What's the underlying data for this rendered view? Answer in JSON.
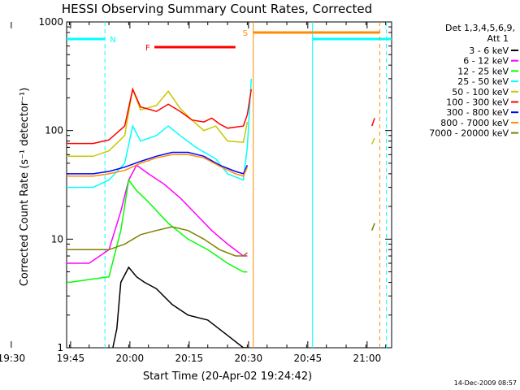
{
  "chart_data": {
    "type": "line",
    "title": "HESSI Observing Summary Count Rates, Corrected",
    "xlabel": "Start Time (20-Apr-02 19:24:42)",
    "ylabel": "Corrected Count Rate (s⁻¹ detector⁻¹)",
    "yscale": "log",
    "ylim": [
      1,
      1000
    ],
    "xlim_minutes": [
      19.3,
      101.5
    ],
    "x_unit": "minutes after 19:24:42",
    "x_ticks": [
      {
        "label": "19:30",
        "t": 5.3
      },
      {
        "label": "19:45",
        "t": 20.3
      },
      {
        "label": "20:00",
        "t": 35.3
      },
      {
        "label": "20:15",
        "t": 50.3
      },
      {
        "label": "20:30",
        "t": 65.3
      },
      {
        "label": "20:45",
        "t": 80.3
      },
      {
        "label": "21:00",
        "t": 95.3
      }
    ],
    "y_ticks": [
      {
        "label": "1",
        "v": 1
      },
      {
        "label": "10",
        "v": 10
      },
      {
        "label": "100",
        "v": 100
      },
      {
        "label": "1000",
        "v": 1000
      }
    ],
    "legend_header": [
      "Det 1,3,4,5,6,9,",
      "Att 1"
    ],
    "legend_position": "right",
    "series": [
      {
        "name": "3 - 6 keV",
        "color": "#000000",
        "points": [
          [
            31,
            1
          ],
          [
            32,
            1.5
          ],
          [
            33,
            4
          ],
          [
            35,
            5.5
          ],
          [
            37,
            4.5
          ],
          [
            39,
            4
          ],
          [
            42,
            3.5
          ],
          [
            46,
            2.5
          ],
          [
            50,
            2
          ],
          [
            55,
            1.8
          ],
          [
            60,
            1.3
          ],
          [
            64,
            1
          ],
          [
            65,
            1
          ]
        ]
      },
      {
        "name": "6 - 12 keV",
        "color": "#ff00ff",
        "points": [
          [
            0,
            6
          ],
          [
            10,
            6
          ],
          [
            20,
            6
          ],
          [
            25,
            6
          ],
          [
            30,
            8
          ],
          [
            33,
            18
          ],
          [
            35,
            35
          ],
          [
            37,
            48
          ],
          [
            40,
            40
          ],
          [
            44,
            32
          ],
          [
            48,
            24
          ],
          [
            52,
            17
          ],
          [
            56,
            12
          ],
          [
            60,
            9
          ],
          [
            64,
            7
          ],
          [
            65,
            7
          ]
        ]
      },
      {
        "name": "12 - 25 keV",
        "color": "#00ff00",
        "points": [
          [
            0,
            5
          ],
          [
            10,
            4.5
          ],
          [
            20,
            4
          ],
          [
            30,
            4.5
          ],
          [
            33,
            12
          ],
          [
            35,
            35
          ],
          [
            37,
            28
          ],
          [
            40,
            22
          ],
          [
            45,
            14
          ],
          [
            50,
            10
          ],
          [
            55,
            8
          ],
          [
            60,
            6
          ],
          [
            64,
            5
          ],
          [
            65,
            5
          ]
        ]
      },
      {
        "name": "25 - 50 keV",
        "color": "#00ffff",
        "points": [
          [
            0,
            55
          ],
          [
            6,
            40
          ],
          [
            12,
            32
          ],
          [
            20,
            30
          ],
          [
            26,
            30
          ],
          [
            30,
            35
          ],
          [
            34,
            50
          ],
          [
            36,
            110
          ],
          [
            38,
            80
          ],
          [
            42,
            90
          ],
          [
            45,
            110
          ],
          [
            48,
            90
          ],
          [
            52,
            70
          ],
          [
            57,
            55
          ],
          [
            60,
            40
          ],
          [
            64,
            35
          ],
          [
            65,
            70
          ],
          [
            66,
            300
          ]
        ]
      },
      {
        "name": "50 - 100 keV",
        "color": "#c8c800",
        "points": [
          [
            0,
            85
          ],
          [
            6,
            72
          ],
          [
            12,
            62
          ],
          [
            20,
            58
          ],
          [
            26,
            58
          ],
          [
            30,
            65
          ],
          [
            34,
            90
          ],
          [
            36,
            240
          ],
          [
            38,
            155
          ],
          [
            42,
            170
          ],
          [
            45,
            230
          ],
          [
            48,
            160
          ],
          [
            51,
            125
          ],
          [
            54,
            100
          ],
          [
            57,
            110
          ],
          [
            60,
            80
          ],
          [
            64,
            78
          ],
          [
            65,
            120
          ]
        ]
      },
      {
        "name": "100 - 300 keV",
        "color": "#ff0000",
        "points": [
          [
            0,
            105
          ],
          [
            6,
            92
          ],
          [
            12,
            80
          ],
          [
            20,
            76
          ],
          [
            26,
            76
          ],
          [
            30,
            82
          ],
          [
            34,
            110
          ],
          [
            36,
            240
          ],
          [
            38,
            165
          ],
          [
            42,
            150
          ],
          [
            45,
            175
          ],
          [
            48,
            150
          ],
          [
            51,
            125
          ],
          [
            54,
            120
          ],
          [
            56,
            130
          ],
          [
            58,
            115
          ],
          [
            60,
            105
          ],
          [
            64,
            110
          ],
          [
            65,
            140
          ],
          [
            66,
            240
          ]
        ]
      },
      {
        "name": "300 - 800 keV",
        "color": "#0000ff",
        "points": [
          [
            0,
            65
          ],
          [
            6,
            48
          ],
          [
            12,
            40
          ],
          [
            20,
            40
          ],
          [
            26,
            40
          ],
          [
            30,
            42
          ],
          [
            34,
            46
          ],
          [
            38,
            52
          ],
          [
            42,
            58
          ],
          [
            46,
            63
          ],
          [
            50,
            63
          ],
          [
            54,
            58
          ],
          [
            58,
            48
          ],
          [
            62,
            42
          ],
          [
            64,
            40
          ],
          [
            65,
            48
          ]
        ]
      },
      {
        "name": "800 - 7000 keV",
        "color": "#ff8c00",
        "points": [
          [
            0,
            70
          ],
          [
            6,
            50
          ],
          [
            12,
            40
          ],
          [
            20,
            38
          ],
          [
            26,
            38
          ],
          [
            30,
            40
          ],
          [
            34,
            43
          ],
          [
            38,
            50
          ],
          [
            42,
            56
          ],
          [
            46,
            60
          ],
          [
            50,
            60
          ],
          [
            54,
            56
          ],
          [
            58,
            47
          ],
          [
            62,
            40
          ],
          [
            64,
            38
          ],
          [
            65,
            46
          ]
        ]
      },
      {
        "name": "7000 - 20000 keV",
        "color": "#808000",
        "points": [
          [
            0,
            13
          ],
          [
            6,
            9
          ],
          [
            12,
            8
          ],
          [
            20,
            8
          ],
          [
            26,
            8
          ],
          [
            30,
            8
          ],
          [
            34,
            9
          ],
          [
            38,
            11
          ],
          [
            42,
            12
          ],
          [
            46,
            13
          ],
          [
            50,
            12
          ],
          [
            54,
            10
          ],
          [
            58,
            8
          ],
          [
            62,
            7
          ],
          [
            64,
            7
          ],
          [
            65,
            7.5
          ]
        ]
      }
    ],
    "series_segments": [
      {
        "color": "#ff0000",
        "points": [
          [
            96.5,
            110
          ],
          [
            97.2,
            130
          ]
        ]
      },
      {
        "color": "#c8c800",
        "points": [
          [
            96.5,
            75
          ],
          [
            97.2,
            85
          ]
        ]
      },
      {
        "color": "#808000",
        "points": [
          [
            96.5,
            12
          ],
          [
            97.2,
            14
          ]
        ]
      }
    ],
    "markers": {
      "N": {
        "label": "N",
        "color": "#00ffff",
        "bars": [
          [
            19.3,
            29
          ],
          [
            81.5,
            101.5
          ]
        ],
        "dashed_lines": [
          29,
          100.2
        ],
        "solid_lines": [
          81.5
        ]
      },
      "F": {
        "label": "F",
        "color": "#ff0000",
        "bars": [
          [
            41.5,
            62
          ]
        ]
      },
      "S": {
        "label": "S",
        "color": "#ff8c00",
        "bars": [
          [
            66.5,
            98.5
          ]
        ],
        "solid_lines": [
          66.5
        ],
        "dashed_lines": [
          98.5
        ]
      }
    }
  },
  "footer_timestamp": "14-Dec-2009 08:57"
}
